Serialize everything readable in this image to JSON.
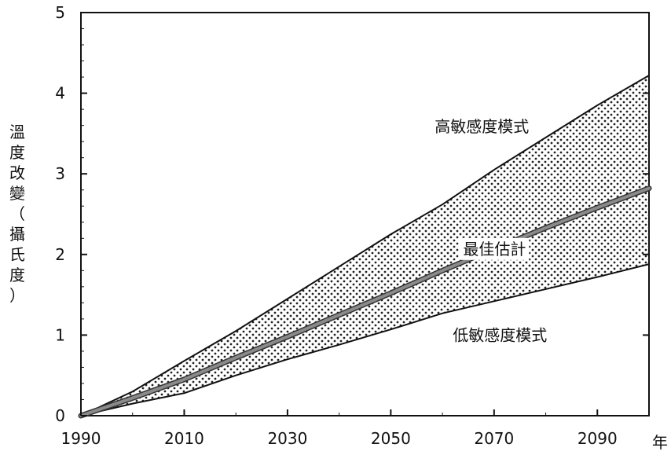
{
  "chart_data": {
    "type": "area",
    "title": "",
    "xlabel": "年",
    "ylabel": "溫度改變（攝氏度）",
    "x": [
      1990,
      2000,
      2010,
      2020,
      2030,
      2040,
      2050,
      2060,
      2070,
      2080,
      2090,
      2100
    ],
    "xticks": [
      1990,
      2010,
      2030,
      2050,
      2070,
      2090
    ],
    "yticks": [
      0,
      1,
      2,
      3,
      4,
      5
    ],
    "xlim": [
      1990,
      2100
    ],
    "ylim": [
      0,
      5
    ],
    "grid": false,
    "series": [
      {
        "name": "高敏感度模式",
        "role": "upper",
        "values": [
          0,
          0.3,
          0.68,
          1.05,
          1.45,
          1.85,
          2.25,
          2.62,
          3.05,
          3.45,
          3.85,
          4.22
        ]
      },
      {
        "name": "最佳估計",
        "role": "central",
        "values": [
          0,
          0.22,
          0.45,
          0.72,
          0.98,
          1.25,
          1.52,
          1.8,
          2.07,
          2.33,
          2.58,
          2.82
        ]
      },
      {
        "name": "低敏感度模式",
        "role": "lower",
        "values": [
          0,
          0.15,
          0.28,
          0.5,
          0.7,
          0.88,
          1.07,
          1.27,
          1.42,
          1.57,
          1.72,
          1.88
        ]
      }
    ]
  },
  "colors": {
    "band_dots": "#222222",
    "central_line": "#8a8a8a",
    "axis": "#111111"
  }
}
